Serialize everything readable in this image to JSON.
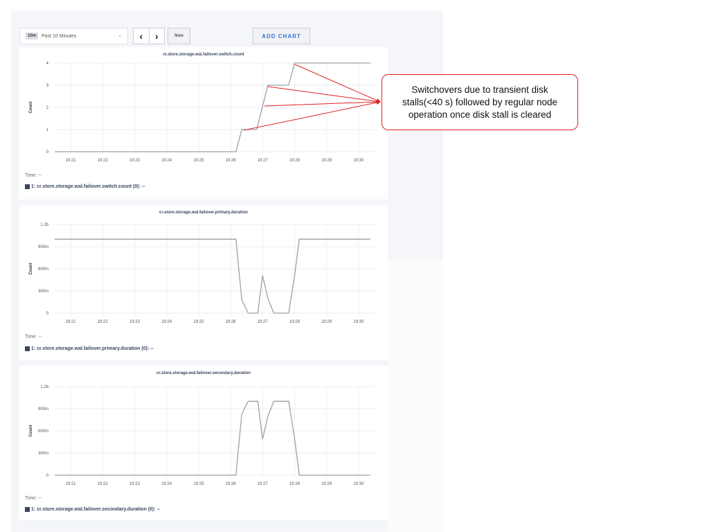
{
  "toolbar": {
    "range_badge": "10m",
    "range_label": "Past 10 Minutes",
    "prev_icon": "chevron-left-icon",
    "next_icon": "chevron-right-icon",
    "now_label": "Now",
    "add_chart_label": "ADD CHART"
  },
  "annotation": {
    "text": "Switchovers due to transient disk stalls(<40 s) followed by regular node operation once disk stall is cleared",
    "color": "#dd2222"
  },
  "chart_data": [
    {
      "type": "line",
      "title": "cr.store.storage.wal.failover.switch.count",
      "ylabel": "Count",
      "xlabel": "",
      "ylim": [
        0,
        4
      ],
      "yticks": [
        {
          "v": 0,
          "label": "0"
        },
        {
          "v": 1,
          "label": "1"
        },
        {
          "v": 2,
          "label": "2"
        },
        {
          "v": 3,
          "label": "3"
        },
        {
          "v": 4,
          "label": "4"
        }
      ],
      "xticks": [
        "19:21",
        "19:22",
        "19:23",
        "19:24",
        "19:25",
        "19:26",
        "19:27",
        "19:28",
        "19:29",
        "19:30"
      ],
      "grid": true,
      "line_color": "#9aa0aa",
      "series": [
        {
          "x": [
            "19:20:30",
            "19:26:10",
            "19:26:21",
            "19:26:49",
            "19:27:10",
            "19:27:49",
            "19:28:00",
            "19:30:22"
          ],
          "y": [
            0,
            0,
            1,
            1,
            3,
            3,
            4,
            4
          ]
        }
      ],
      "time_label": "Time: --",
      "legend": "1: cr.store.storage.wal.failover.switch.count (0):  --"
    },
    {
      "type": "line",
      "title": "cr.store.storage.wal.failover.primary.duration",
      "ylabel": "Count",
      "xlabel": "",
      "ylim": [
        0,
        1200
      ],
      "yticks": [
        {
          "v": 0,
          "label": "0"
        },
        {
          "v": 300,
          "label": "300m"
        },
        {
          "v": 600,
          "label": "600m"
        },
        {
          "v": 900,
          "label": "900m"
        },
        {
          "v": 1200,
          "label": "1.2b"
        }
      ],
      "xticks": [
        "19:21",
        "19:22",
        "19:23",
        "19:24",
        "19:25",
        "19:26",
        "19:27",
        "19:28",
        "19:29",
        "19:30"
      ],
      "grid": true,
      "line_color": "#9aa0aa",
      "series": [
        {
          "x": [
            "19:20:30",
            "19:26:10",
            "19:26:21",
            "19:26:33",
            "19:26:51",
            "19:27:00",
            "19:27:10",
            "19:27:21",
            "19:27:49",
            "19:28:00",
            "19:28:09",
            "19:30:22"
          ],
          "y": [
            1000,
            1000,
            180,
            0,
            0,
            510,
            200,
            0,
            0,
            500,
            1000,
            1000
          ]
        }
      ],
      "time_label": "Time: --",
      "legend": "1: cr.store.storage.wal.failover.primary.duration (0):  --"
    },
    {
      "type": "line",
      "title": "cr.store.storage.wal.failover.secondary.duration",
      "ylabel": "Count",
      "xlabel": "",
      "ylim": [
        0,
        1200
      ],
      "yticks": [
        {
          "v": 0,
          "label": "0"
        },
        {
          "v": 300,
          "label": "300m"
        },
        {
          "v": 600,
          "label": "600m"
        },
        {
          "v": 900,
          "label": "900m"
        },
        {
          "v": 1200,
          "label": "1.2b"
        }
      ],
      "xticks": [
        "19:21",
        "19:22",
        "19:23",
        "19:24",
        "19:25",
        "19:26",
        "19:27",
        "19:28",
        "19:29",
        "19:30"
      ],
      "grid": true,
      "line_color": "#9aa0aa",
      "series": [
        {
          "x": [
            "19:20:30",
            "19:26:10",
            "19:26:21",
            "19:26:33",
            "19:26:51",
            "19:27:00",
            "19:27:10",
            "19:27:21",
            "19:27:49",
            "19:28:00",
            "19:28:09",
            "19:30:22"
          ],
          "y": [
            0,
            0,
            830,
            1000,
            1000,
            490,
            800,
            1000,
            1000,
            500,
            0,
            0
          ]
        }
      ],
      "time_label": "Time: --",
      "legend": "1: cr.store.storage.wal.failover.secondary.duration (0):  --"
    }
  ]
}
